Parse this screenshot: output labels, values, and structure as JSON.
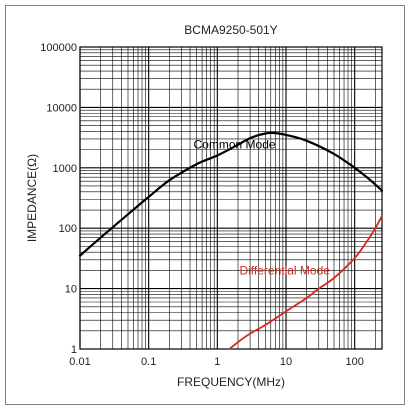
{
  "chart_data": {
    "type": "line",
    "title": "BCMA9250-501Y",
    "xlabel": "FREQUENCY(MHz)",
    "ylabel": "IMPEDANCE(Ω)",
    "xscale": "log",
    "yscale": "log",
    "xlim": [
      0.01,
      250
    ],
    "ylim": [
      1,
      100000
    ],
    "xticks": [
      "0.01",
      "0.1",
      "1",
      "10",
      "100"
    ],
    "yticks": [
      "1",
      "10",
      "100",
      "1000",
      "10000",
      "100000"
    ],
    "grid": true,
    "colors": {
      "common": "#000000",
      "differential": "#d42a20"
    },
    "annotations": [
      {
        "text": "Common Mode",
        "series": "common"
      },
      {
        "text": "Differential Mode",
        "series": "differential"
      }
    ],
    "series": [
      {
        "key": "common",
        "x": [
          0.01,
          0.02,
          0.05,
          0.1,
          0.2,
          0.5,
          1,
          2,
          3,
          5,
          7,
          10,
          20,
          50,
          100,
          150,
          250
        ],
        "values": [
          35,
          70,
          170,
          330,
          620,
          1150,
          1600,
          2400,
          3100,
          3700,
          3750,
          3500,
          2800,
          1700,
          1000,
          700,
          420
        ]
      },
      {
        "key": "differential",
        "x": [
          1.5,
          2,
          3,
          5,
          10,
          20,
          30,
          50,
          100,
          150,
          200,
          250
        ],
        "values": [
          1,
          1.3,
          1.8,
          2.5,
          4.2,
          7,
          10,
          15,
          32,
          60,
          100,
          160
        ]
      }
    ]
  }
}
